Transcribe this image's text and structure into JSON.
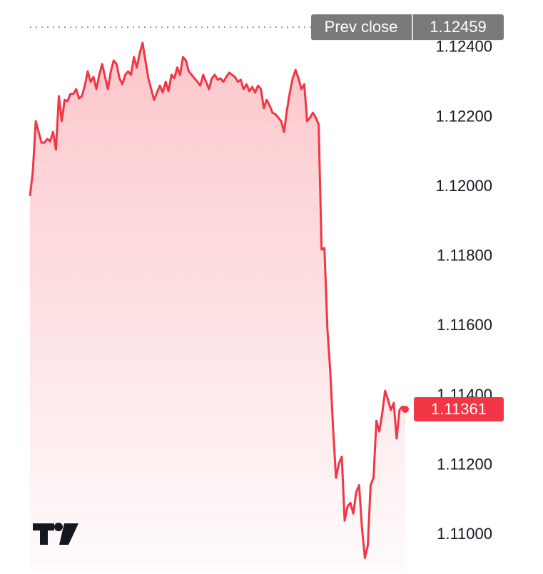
{
  "chart_data": {
    "type": "line",
    "color": "#f23645",
    "values": [
      1.11974,
      1.12045,
      1.12189,
      1.12158,
      1.12127,
      1.12127,
      1.12138,
      1.12131,
      1.12158,
      1.12107,
      1.12261,
      1.12189,
      1.1225,
      1.12246,
      1.12267,
      1.12267,
      1.12281,
      1.12254,
      1.12261,
      1.12291,
      1.12332,
      1.12302,
      1.12316,
      1.12281,
      1.12322,
      1.12353,
      1.12316,
      1.12281,
      1.12332,
      1.12363,
      1.12353,
      1.12312,
      1.12295,
      1.12322,
      1.12332,
      1.12322,
      1.12373,
      1.12343,
      1.12384,
      1.12414,
      1.12363,
      1.12312,
      1.12281,
      1.1225,
      1.12271,
      1.12291,
      1.12271,
      1.12302,
      1.12275,
      1.12322,
      1.12312,
      1.12343,
      1.12322,
      1.12373,
      1.12363,
      1.12332,
      1.12322,
      1.12312,
      1.12302,
      1.12291,
      1.12322,
      1.12302,
      1.12281,
      1.12312,
      1.12322,
      1.12308,
      1.12312,
      1.12302,
      1.12316,
      1.12328,
      1.12322,
      1.12316,
      1.12302,
      1.12308,
      1.12281,
      1.12295,
      1.12275,
      1.12287,
      1.12271,
      1.12291,
      1.12281,
      1.12226,
      1.1225,
      1.12234,
      1.12213,
      1.12209,
      1.12199,
      1.12189,
      1.12158,
      1.1222,
      1.12271,
      1.12312,
      1.12336,
      1.12312,
      1.12281,
      1.12295,
      1.12189,
      1.12199,
      1.12213,
      1.12199,
      1.12179,
      1.1182,
      1.11824,
      1.11594,
      1.11471,
      1.11307,
      1.11164,
      1.11205,
      1.11225,
      1.11041,
      1.11082,
      1.11092,
      1.11061,
      1.11123,
      1.11143,
      1.1102,
      1.10934,
      1.10969,
      1.11143,
      1.11164,
      1.11328,
      1.11297,
      1.11348,
      1.11414,
      1.11389,
      1.11359,
      1.11379,
      1.11277,
      1.11359,
      1.11369,
      1.11361
    ],
    "ylim": [
      1.10898,
      1.12537
    ],
    "yticks": [
      {
        "value": 1.11,
        "label": "1.11000"
      },
      {
        "value": 1.112,
        "label": "1.11200"
      },
      {
        "value": 1.114,
        "label": "1.11400"
      },
      {
        "value": 1.116,
        "label": "1.11600"
      },
      {
        "value": 1.118,
        "label": "1.11800"
      },
      {
        "value": 1.12,
        "label": "1.12000"
      },
      {
        "value": 1.122,
        "label": "1.12200"
      },
      {
        "value": 1.124,
        "label": "1.12400"
      }
    ],
    "prev_close": {
      "label": "Prev close",
      "value": 1.12459
    }
  }
}
